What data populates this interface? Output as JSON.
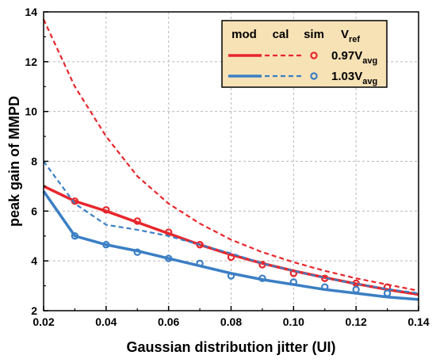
{
  "chart_data": {
    "type": "line",
    "title": "",
    "xlabel": "Gaussian distribution jitter (UI)",
    "ylabel": "peak gain of MMPD",
    "xlim": [
      0.02,
      0.14
    ],
    "ylim": [
      2,
      14
    ],
    "xticks": [
      "0.02",
      "0.04",
      "0.06",
      "0.08",
      "0.10",
      "0.12",
      "0.14"
    ],
    "yticks": [
      "2",
      "4",
      "6",
      "8",
      "10",
      "12",
      "14"
    ],
    "grid": true,
    "legend_position": "top-right",
    "legend": {
      "headers": [
        "mod",
        "cal",
        "sim",
        "V",
        "ref"
      ],
      "labels": [
        {
          "main": "0.97V",
          "sub": "avg"
        },
        {
          "main": "1.03V",
          "sub": "avg"
        }
      ]
    },
    "series": [
      {
        "group": "0.97Vavg",
        "kind": "mod",
        "style": "solid",
        "color": "#e8262b",
        "x": [
          0.02,
          0.03,
          0.04,
          0.05,
          0.06,
          0.07,
          0.08,
          0.09,
          0.1,
          0.11,
          0.12,
          0.13,
          0.14
        ],
        "y": [
          7.0,
          6.4,
          6.0,
          5.55,
          5.1,
          4.65,
          4.25,
          3.9,
          3.6,
          3.33,
          3.08,
          2.85,
          2.65
        ]
      },
      {
        "group": "0.97Vavg",
        "kind": "cal",
        "style": "dashed",
        "color": "#e8262b",
        "x": [
          0.02,
          0.03,
          0.04,
          0.05,
          0.06,
          0.07,
          0.08,
          0.09,
          0.1,
          0.11,
          0.12,
          0.13,
          0.14
        ],
        "y": [
          13.7,
          11.0,
          9.0,
          7.4,
          6.3,
          5.5,
          4.85,
          4.35,
          3.95,
          3.6,
          3.3,
          3.05,
          2.8
        ]
      },
      {
        "group": "0.97Vavg",
        "kind": "sim",
        "style": "marker",
        "color": "#e8262b",
        "x": [
          0.03,
          0.04,
          0.05,
          0.06,
          0.07,
          0.08,
          0.09,
          0.1,
          0.11,
          0.12,
          0.13
        ],
        "y": [
          6.4,
          6.05,
          5.6,
          5.15,
          4.65,
          4.15,
          3.85,
          3.5,
          3.3,
          3.1,
          2.95
        ]
      },
      {
        "group": "1.03Vavg",
        "kind": "mod",
        "style": "solid",
        "color": "#3b7fc4",
        "x": [
          0.02,
          0.03,
          0.04,
          0.05,
          0.06,
          0.07,
          0.08,
          0.09,
          0.1,
          0.11,
          0.12,
          0.13,
          0.14
        ],
        "y": [
          6.8,
          5.0,
          4.65,
          4.4,
          4.1,
          3.8,
          3.5,
          3.25,
          3.05,
          2.85,
          2.7,
          2.55,
          2.45
        ]
      },
      {
        "group": "1.03Vavg",
        "kind": "cal",
        "style": "dashed",
        "color": "#3b7fc4",
        "x": [
          0.02,
          0.03,
          0.04,
          0.05,
          0.06,
          0.07,
          0.08,
          0.09,
          0.1,
          0.11,
          0.12,
          0.13,
          0.14
        ],
        "y": [
          8.0,
          6.3,
          5.45,
          5.25,
          5.0,
          4.65,
          4.3,
          3.9,
          3.6,
          3.32,
          3.08,
          2.87,
          2.7
        ]
      },
      {
        "group": "1.03Vavg",
        "kind": "sim",
        "style": "marker",
        "color": "#3b7fc4",
        "x": [
          0.03,
          0.04,
          0.05,
          0.06,
          0.07,
          0.08,
          0.09,
          0.1,
          0.11,
          0.12,
          0.13
        ],
        "y": [
          5.0,
          4.65,
          4.35,
          4.1,
          3.9,
          3.4,
          3.3,
          3.15,
          2.95,
          2.85,
          2.7
        ]
      }
    ],
    "colors": {
      "legend_background": "#f7e2b6",
      "grid": "#b8b8b8",
      "axis": "#000000"
    }
  }
}
